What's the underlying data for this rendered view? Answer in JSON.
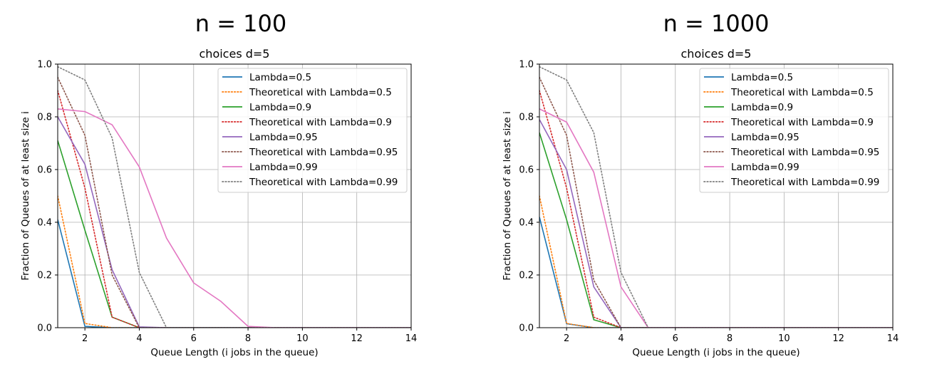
{
  "headings": {
    "left": "n = 100",
    "right": "n = 1000"
  },
  "chart_data": [
    {
      "type": "line",
      "title": "choices d=5",
      "xlabel": "Queue Length (i jobs in the queue)",
      "ylabel": "Fraction of Queues of at least size i",
      "xlim": [
        1,
        14
      ],
      "ylim": [
        0,
        1.0
      ],
      "xticks": [
        2,
        4,
        6,
        8,
        10,
        12,
        14
      ],
      "yticks": [
        0.0,
        0.2,
        0.4,
        0.6,
        0.8,
        1.0
      ],
      "xtick_labels": [
        "2",
        "4",
        "6",
        "8",
        "10",
        "12",
        "14"
      ],
      "ytick_labels": [
        "0.0",
        "0.2",
        "0.4",
        "0.6",
        "0.8",
        "1.0"
      ],
      "grid": true,
      "legend_position": "top-right",
      "x": [
        1,
        2,
        3,
        4,
        5,
        6,
        7,
        8,
        9,
        10,
        11,
        12,
        13,
        14
      ],
      "series": [
        {
          "name": "Lambda=0.5",
          "color": "#1f77b4",
          "style": "solid",
          "values": [
            0.41,
            0.005,
            0.0,
            0.0,
            0.0,
            0.0,
            0.0,
            0.0,
            0.0,
            0.0,
            0.0,
            0.0,
            0.0,
            0.0
          ]
        },
        {
          "name": "Theoretical with Lambda=0.5",
          "color": "#ff7f0e",
          "style": "dotted",
          "values": [
            0.5,
            0.016,
            0.0,
            0.0,
            0.0,
            0.0,
            0.0,
            0.0,
            0.0,
            0.0,
            0.0,
            0.0,
            0.0,
            0.0
          ]
        },
        {
          "name": "Lambda=0.9",
          "color": "#2ca02c",
          "style": "solid",
          "values": [
            0.71,
            0.37,
            0.04,
            0.0,
            0.0,
            0.0,
            0.0,
            0.0,
            0.0,
            0.0,
            0.0,
            0.0,
            0.0,
            0.0
          ]
        },
        {
          "name": "Theoretical with Lambda=0.9",
          "color": "#d62728",
          "style": "dotted",
          "values": [
            0.9,
            0.53,
            0.04,
            0.0,
            0.0,
            0.0,
            0.0,
            0.0,
            0.0,
            0.0,
            0.0,
            0.0,
            0.0,
            0.0
          ]
        },
        {
          "name": "Lambda=0.95",
          "color": "#9467bd",
          "style": "solid",
          "values": [
            0.8,
            0.62,
            0.22,
            0.003,
            0.0,
            0.0,
            0.0,
            0.0,
            0.0,
            0.0,
            0.0,
            0.0,
            0.0,
            0.0
          ]
        },
        {
          "name": "Theoretical with Lambda=0.95",
          "color": "#8c564b",
          "style": "dotted",
          "values": [
            0.95,
            0.73,
            0.2,
            0.0,
            0.0,
            0.0,
            0.0,
            0.0,
            0.0,
            0.0,
            0.0,
            0.0,
            0.0,
            0.0
          ]
        },
        {
          "name": "Lambda=0.99",
          "color": "#e377c2",
          "style": "solid",
          "values": [
            0.83,
            0.82,
            0.77,
            0.61,
            0.34,
            0.17,
            0.1,
            0.005,
            0.0,
            0.0,
            0.0,
            0.0,
            0.0,
            0.0
          ]
        },
        {
          "name": "Theoretical with Lambda=0.99",
          "color": "#7f7f7f",
          "style": "dotted",
          "values": [
            0.99,
            0.94,
            0.72,
            0.21,
            0.0,
            0.0,
            0.0,
            0.0,
            0.0,
            0.0,
            0.0,
            0.0,
            0.0,
            0.0
          ]
        }
      ]
    },
    {
      "type": "line",
      "title": "choices d=5",
      "xlabel": "Queue Length (i jobs in the queue)",
      "ylabel": "Fraction of Queues of at least size i",
      "xlim": [
        1,
        14
      ],
      "ylim": [
        0,
        1.0
      ],
      "xticks": [
        2,
        4,
        6,
        8,
        10,
        12,
        14
      ],
      "yticks": [
        0.0,
        0.2,
        0.4,
        0.6,
        0.8,
        1.0
      ],
      "xtick_labels": [
        "2",
        "4",
        "6",
        "8",
        "10",
        "12",
        "14"
      ],
      "ytick_labels": [
        "0.0",
        "0.2",
        "0.4",
        "0.6",
        "0.8",
        "1.0"
      ],
      "grid": true,
      "legend_position": "top-right",
      "x": [
        1,
        2,
        3,
        4,
        5,
        6,
        7,
        8,
        9,
        10,
        11,
        12,
        13,
        14
      ],
      "series": [
        {
          "name": "Lambda=0.5",
          "color": "#1f77b4",
          "style": "solid",
          "values": [
            0.42,
            0.015,
            0.0,
            0.0,
            0.0,
            0.0,
            0.0,
            0.0,
            0.0,
            0.0,
            0.0,
            0.0,
            0.0,
            0.0
          ]
        },
        {
          "name": "Theoretical with Lambda=0.5",
          "color": "#ff7f0e",
          "style": "dotted",
          "values": [
            0.5,
            0.016,
            0.0,
            0.0,
            0.0,
            0.0,
            0.0,
            0.0,
            0.0,
            0.0,
            0.0,
            0.0,
            0.0,
            0.0
          ]
        },
        {
          "name": "Lambda=0.9",
          "color": "#2ca02c",
          "style": "solid",
          "values": [
            0.74,
            0.41,
            0.03,
            0.0,
            0.0,
            0.0,
            0.0,
            0.0,
            0.0,
            0.0,
            0.0,
            0.0,
            0.0,
            0.0
          ]
        },
        {
          "name": "Theoretical with Lambda=0.9",
          "color": "#d62728",
          "style": "dotted",
          "values": [
            0.9,
            0.53,
            0.04,
            0.0,
            0.0,
            0.0,
            0.0,
            0.0,
            0.0,
            0.0,
            0.0,
            0.0,
            0.0,
            0.0
          ]
        },
        {
          "name": "Lambda=0.95",
          "color": "#9467bd",
          "style": "solid",
          "values": [
            0.79,
            0.6,
            0.155,
            0.0,
            0.0,
            0.0,
            0.0,
            0.0,
            0.0,
            0.0,
            0.0,
            0.0,
            0.0,
            0.0
          ]
        },
        {
          "name": "Theoretical with Lambda=0.95",
          "color": "#8c564b",
          "style": "dotted",
          "values": [
            0.95,
            0.73,
            0.18,
            0.0,
            0.0,
            0.0,
            0.0,
            0.0,
            0.0,
            0.0,
            0.0,
            0.0,
            0.0,
            0.0
          ]
        },
        {
          "name": "Lambda=0.99",
          "color": "#e377c2",
          "style": "solid",
          "values": [
            0.83,
            0.78,
            0.59,
            0.155,
            0.0,
            0.0,
            0.0,
            0.0,
            0.0,
            0.0,
            0.0,
            0.0,
            0.0,
            0.0
          ]
        },
        {
          "name": "Theoretical with Lambda=0.99",
          "color": "#7f7f7f",
          "style": "dotted",
          "values": [
            0.99,
            0.94,
            0.74,
            0.21,
            0.0,
            0.0,
            0.0,
            0.0,
            0.0,
            0.0,
            0.0,
            0.0,
            0.0,
            0.0
          ]
        }
      ]
    }
  ]
}
